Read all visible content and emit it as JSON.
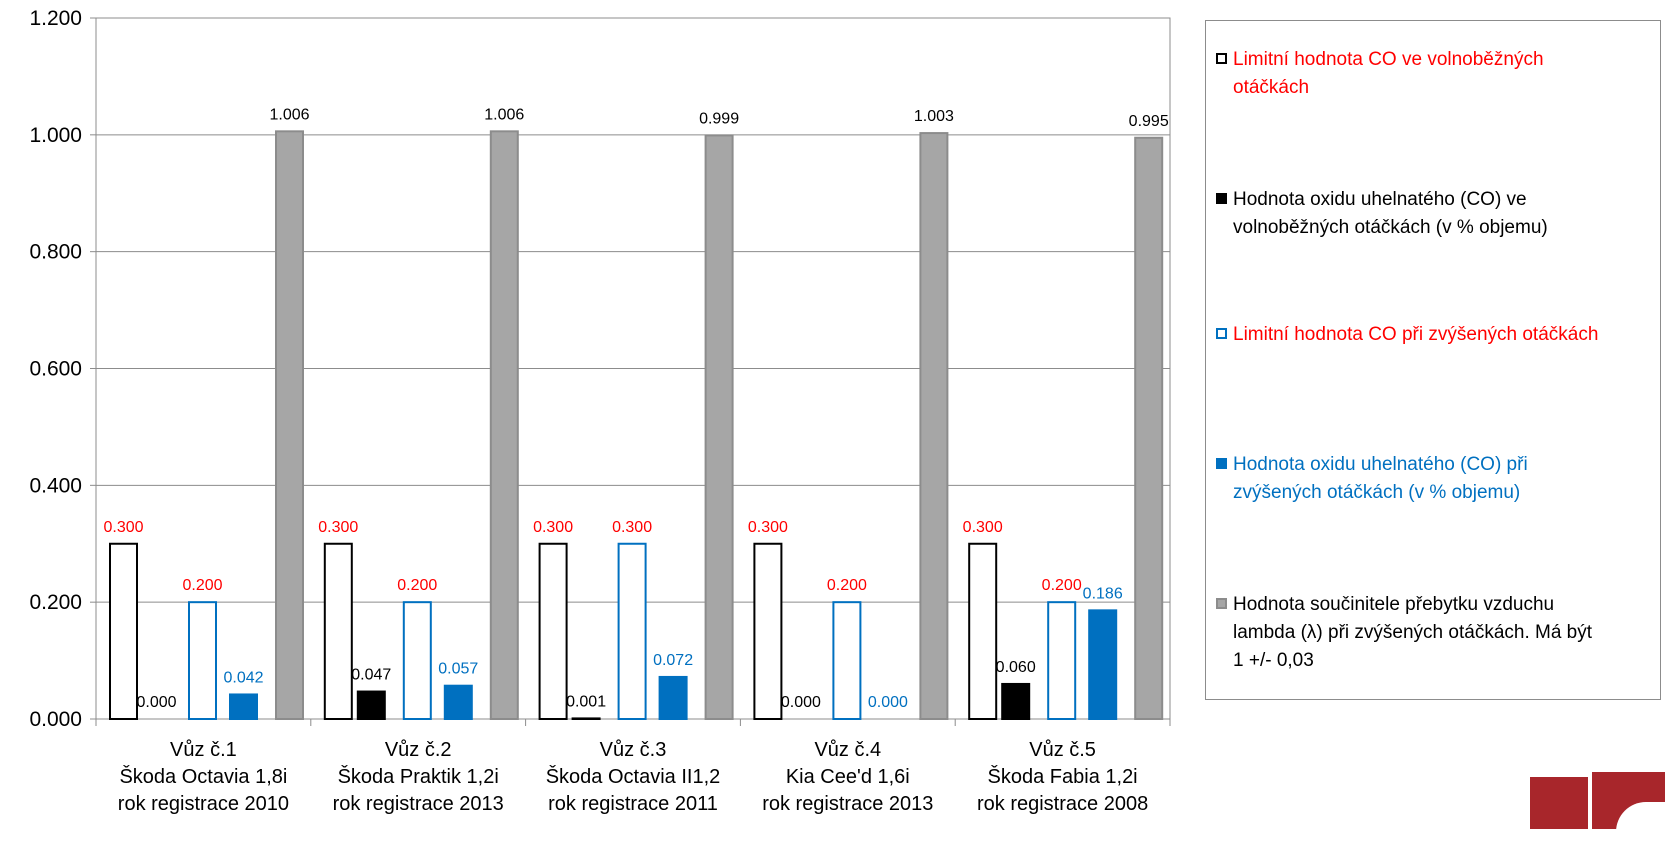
{
  "chart_data": {
    "type": "bar",
    "title": "",
    "xlabel": "",
    "ylabel": "",
    "ylim": [
      0,
      1.2
    ],
    "yticks": [
      "0.000",
      "0.200",
      "0.400",
      "0.600",
      "0.800",
      "1.000",
      "1.200"
    ],
    "grid": true,
    "legend_position": "right",
    "categories": [
      [
        "Vůz č.1",
        "Škoda Octavia 1,8i",
        "rok registrace 2010"
      ],
      [
        "Vůz č.2",
        "Škoda Praktik 1,2i",
        "rok registrace 2013"
      ],
      [
        "Vůz č.3",
        "Škoda Octavia II1,2",
        "rok registrace 2011"
      ],
      [
        "Vůz č.4",
        "Kia Cee'd 1,6i",
        "rok registrace 2013"
      ],
      [
        "Vůz č.5",
        "Škoda Fabia 1,2i",
        "rok registrace 2008"
      ]
    ],
    "series": [
      {
        "name": "Limitní hodnota CO ve volnoběžných otáčkách",
        "values": [
          0.3,
          0.3,
          0.3,
          0.3,
          0.3
        ],
        "labels": [
          "0.300",
          "0.300",
          "0.300",
          "0.300",
          "0.300"
        ],
        "fill": "#ffffff",
        "stroke": "#000000",
        "label_color": "#ff0000",
        "legend_color": "#ff0000"
      },
      {
        "name": "Hodnota oxidu uhelnatého (CO) ve volnoběžných otáčkách (v % objemu)",
        "values": [
          0.0,
          0.047,
          0.001,
          0.0,
          0.06
        ],
        "labels": [
          "0.000",
          "0.047",
          "0.001",
          "0.000",
          "0.060"
        ],
        "fill": "#000000",
        "stroke": "#000000",
        "label_color": "#000000",
        "legend_color": "#000000"
      },
      {
        "name": "Limitní hodnota CO při zvýšených otáčkách",
        "values": [
          0.2,
          0.2,
          0.3,
          0.2,
          0.2
        ],
        "labels": [
          "0.200",
          "0.200",
          "0.300",
          "0.200",
          "0.200"
        ],
        "fill": "#ffffff",
        "stroke": "#0070c0",
        "label_color": "#ff0000",
        "legend_color": "#ff0000"
      },
      {
        "name": "Hodnota oxidu uhelnatého (CO) při zvýšených otáčkách (v % objemu)",
        "values": [
          0.042,
          0.057,
          0.072,
          0.0,
          0.186
        ],
        "labels": [
          "0.042",
          "0.057",
          "0.072",
          "0.000",
          "0.186"
        ],
        "fill": "#0070c0",
        "stroke": "#0070c0",
        "label_color": "#0070c0",
        "legend_color": "#0070c0"
      },
      {
        "name": "Hodnota součinitele přebytku vzduchu lambda (λ) při zvýšených otáčkách. Má být 1 +/- 0,03",
        "values": [
          1.006,
          1.006,
          0.999,
          1.003,
          0.995
        ],
        "labels": [
          "1.006",
          "1.006",
          "0.999",
          "1.003",
          "0.995"
        ],
        "fill": "#a6a6a6",
        "stroke": "#8c8c8c",
        "label_color": "#000000",
        "legend_color": "#000000"
      }
    ]
  },
  "legend": {
    "items": [
      {
        "lines": [
          "Limitní hodnota CO ve volnoběžných",
          "otáčkách"
        ]
      },
      {
        "lines": [
          "Hodnota oxidu uhelnatého (CO) ve",
          "volnoběžných otáčkách (v % objemu)"
        ]
      },
      {
        "lines": [
          "Limitní hodnota CO při zvýšených otáčkách"
        ]
      },
      {
        "lines": [
          "Hodnota oxidu uhelnatého (CO) při",
          "zvýšených otáčkách (v % objemu)"
        ]
      },
      {
        "lines": [
          "Hodnota součinitele přebytku vzduchu",
          "lambda (λ) při zvýšených otáčkách. Má být",
          "1 +/- 0,03"
        ]
      }
    ]
  },
  "logo": {
    "colour": "#a8262b"
  }
}
